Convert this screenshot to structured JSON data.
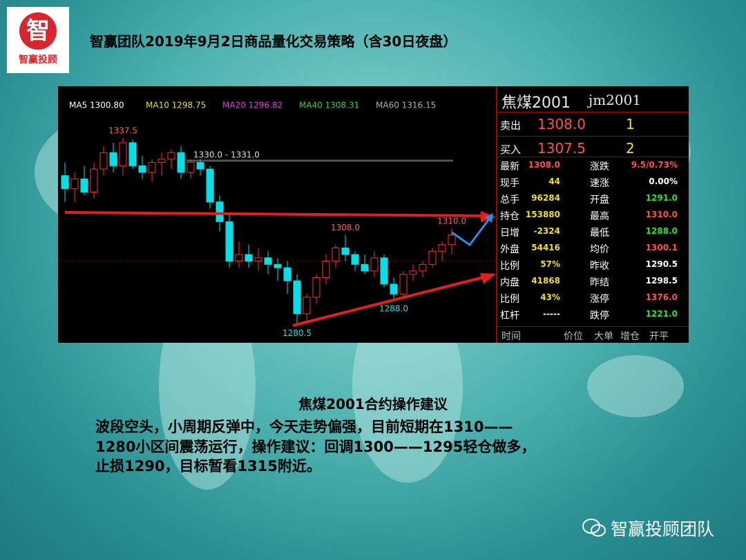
{
  "header": {
    "title": "智赢团队2019年9月2日商品量化交易策略（含30日夜盘）",
    "logo_char": "智",
    "logo_text": "智赢投顾"
  },
  "chart_data": {
    "type": "candlestick",
    "ma_legend": [
      {
        "text": "MA5 1300.80",
        "color": "#ffffff"
      },
      {
        "text": "MA10 1298.75",
        "color": "#e8e030"
      },
      {
        "text": "MA20 1296.82",
        "color": "#e040e0"
      },
      {
        "text": "MA40 1308.31",
        "color": "#40d040"
      },
      {
        "text": "MA60 1316.15",
        "color": "#b0b0b0"
      }
    ],
    "ylim": [
      1276,
      1349
    ],
    "up_color": "#ff3030",
    "down_color": "#00e0e8",
    "open": [
      1326,
      1322,
      1325,
      1321,
      1328,
      1333,
      1329,
      1336,
      1329,
      1327,
      1330,
      1331,
      1333,
      1327,
      1330,
      1328,
      1318,
      1312,
      1300,
      1302,
      1300,
      1301,
      1299,
      1298,
      1294,
      1284,
      1289,
      1295,
      1300,
      1304,
      1302,
      1299,
      1297,
      1301,
      1293,
      1290,
      1296,
      1297,
      1299,
      1303,
      1305
    ],
    "high": [
      1330,
      1327,
      1329,
      1330,
      1335,
      1336,
      1337.5,
      1337,
      1332,
      1331,
      1333,
      1334,
      1335,
      1331,
      1331,
      1329,
      1320,
      1314,
      1306,
      1305,
      1304,
      1303,
      1301,
      1300,
      1296,
      1290,
      1296,
      1302,
      1305,
      1308,
      1303,
      1302,
      1303,
      1302,
      1295,
      1297,
      1299,
      1300,
      1304,
      1306,
      1310
    ],
    "low": [
      1318,
      1318,
      1320,
      1319,
      1326,
      1327,
      1326,
      1328,
      1325,
      1324,
      1326,
      1328,
      1325,
      1325,
      1326,
      1316,
      1309,
      1298,
      1298,
      1298,
      1297,
      1296,
      1294,
      1290,
      1280.5,
      1282,
      1287,
      1293,
      1298,
      1300,
      1297,
      1296,
      1295,
      1292,
      1288,
      1289,
      1294,
      1295,
      1298,
      1300,
      1302
    ],
    "close": [
      1322,
      1325,
      1321,
      1328,
      1333,
      1329,
      1336,
      1329,
      1327,
      1330,
      1331,
      1333,
      1327,
      1330,
      1328,
      1318,
      1312,
      1300,
      1302,
      1300,
      1301,
      1299,
      1298,
      1294,
      1284,
      1289,
      1295,
      1300,
      1304,
      1302,
      1299,
      1297,
      1301,
      1293,
      1290,
      1296,
      1297,
      1299,
      1303,
      1305,
      1308
    ],
    "annotations": [
      1337.5,
      {
        "value": 1308,
        "label": "1308.0"
      },
      {
        "value": 1310,
        "label": "1310.0"
      },
      1280.5,
      {
        "value": 1288,
        "label": "1288.0"
      }
    ],
    "range_label": "1330.0 - 1331.0"
  },
  "quote_panel": {
    "name": "焦煤2001",
    "code": "jm2001",
    "ask": {
      "label": "卖出",
      "price": "1308.0",
      "volume": "1"
    },
    "bid": {
      "label": "买入",
      "price": "1307.5",
      "volume": "2"
    },
    "rows": [
      [
        "最新",
        "1308.0",
        "涨跌",
        "9.5/0.73%"
      ],
      [
        "现手",
        "44",
        "速涨",
        "0.00%"
      ],
      [
        "总手",
        "96284",
        "开盘",
        "1291.0"
      ],
      [
        "持仓",
        "153880",
        "最高",
        "1310.0"
      ],
      [
        "日增",
        "-2324",
        "最低",
        "1288.0"
      ],
      [
        "外盘",
        "54416",
        "均价",
        "1300.1"
      ],
      [
        "比例",
        "57%",
        "昨收",
        "1290.5"
      ],
      [
        "内盘",
        "41868",
        "昨结",
        "1298.5"
      ],
      [
        "比例",
        "43%",
        "涨停",
        "1376.0"
      ],
      [
        "杠杆",
        "-----",
        "跌停",
        "1221.0"
      ]
    ],
    "footer": [
      "时间",
      "价位",
      "大单",
      "增仓",
      "开平"
    ]
  },
  "advice": {
    "heading": "焦煤2001合约操作建议",
    "lines": [
      "波段空头，小周期反弹中，今天走势偏强，目前短期在1310——",
      "1280小区间震荡运行，操作建议：回调1300——1295轻仓做多，",
      "止损1290，目标暂看1315附近。"
    ]
  },
  "footer": {
    "brand": "智赢投顾团队"
  }
}
